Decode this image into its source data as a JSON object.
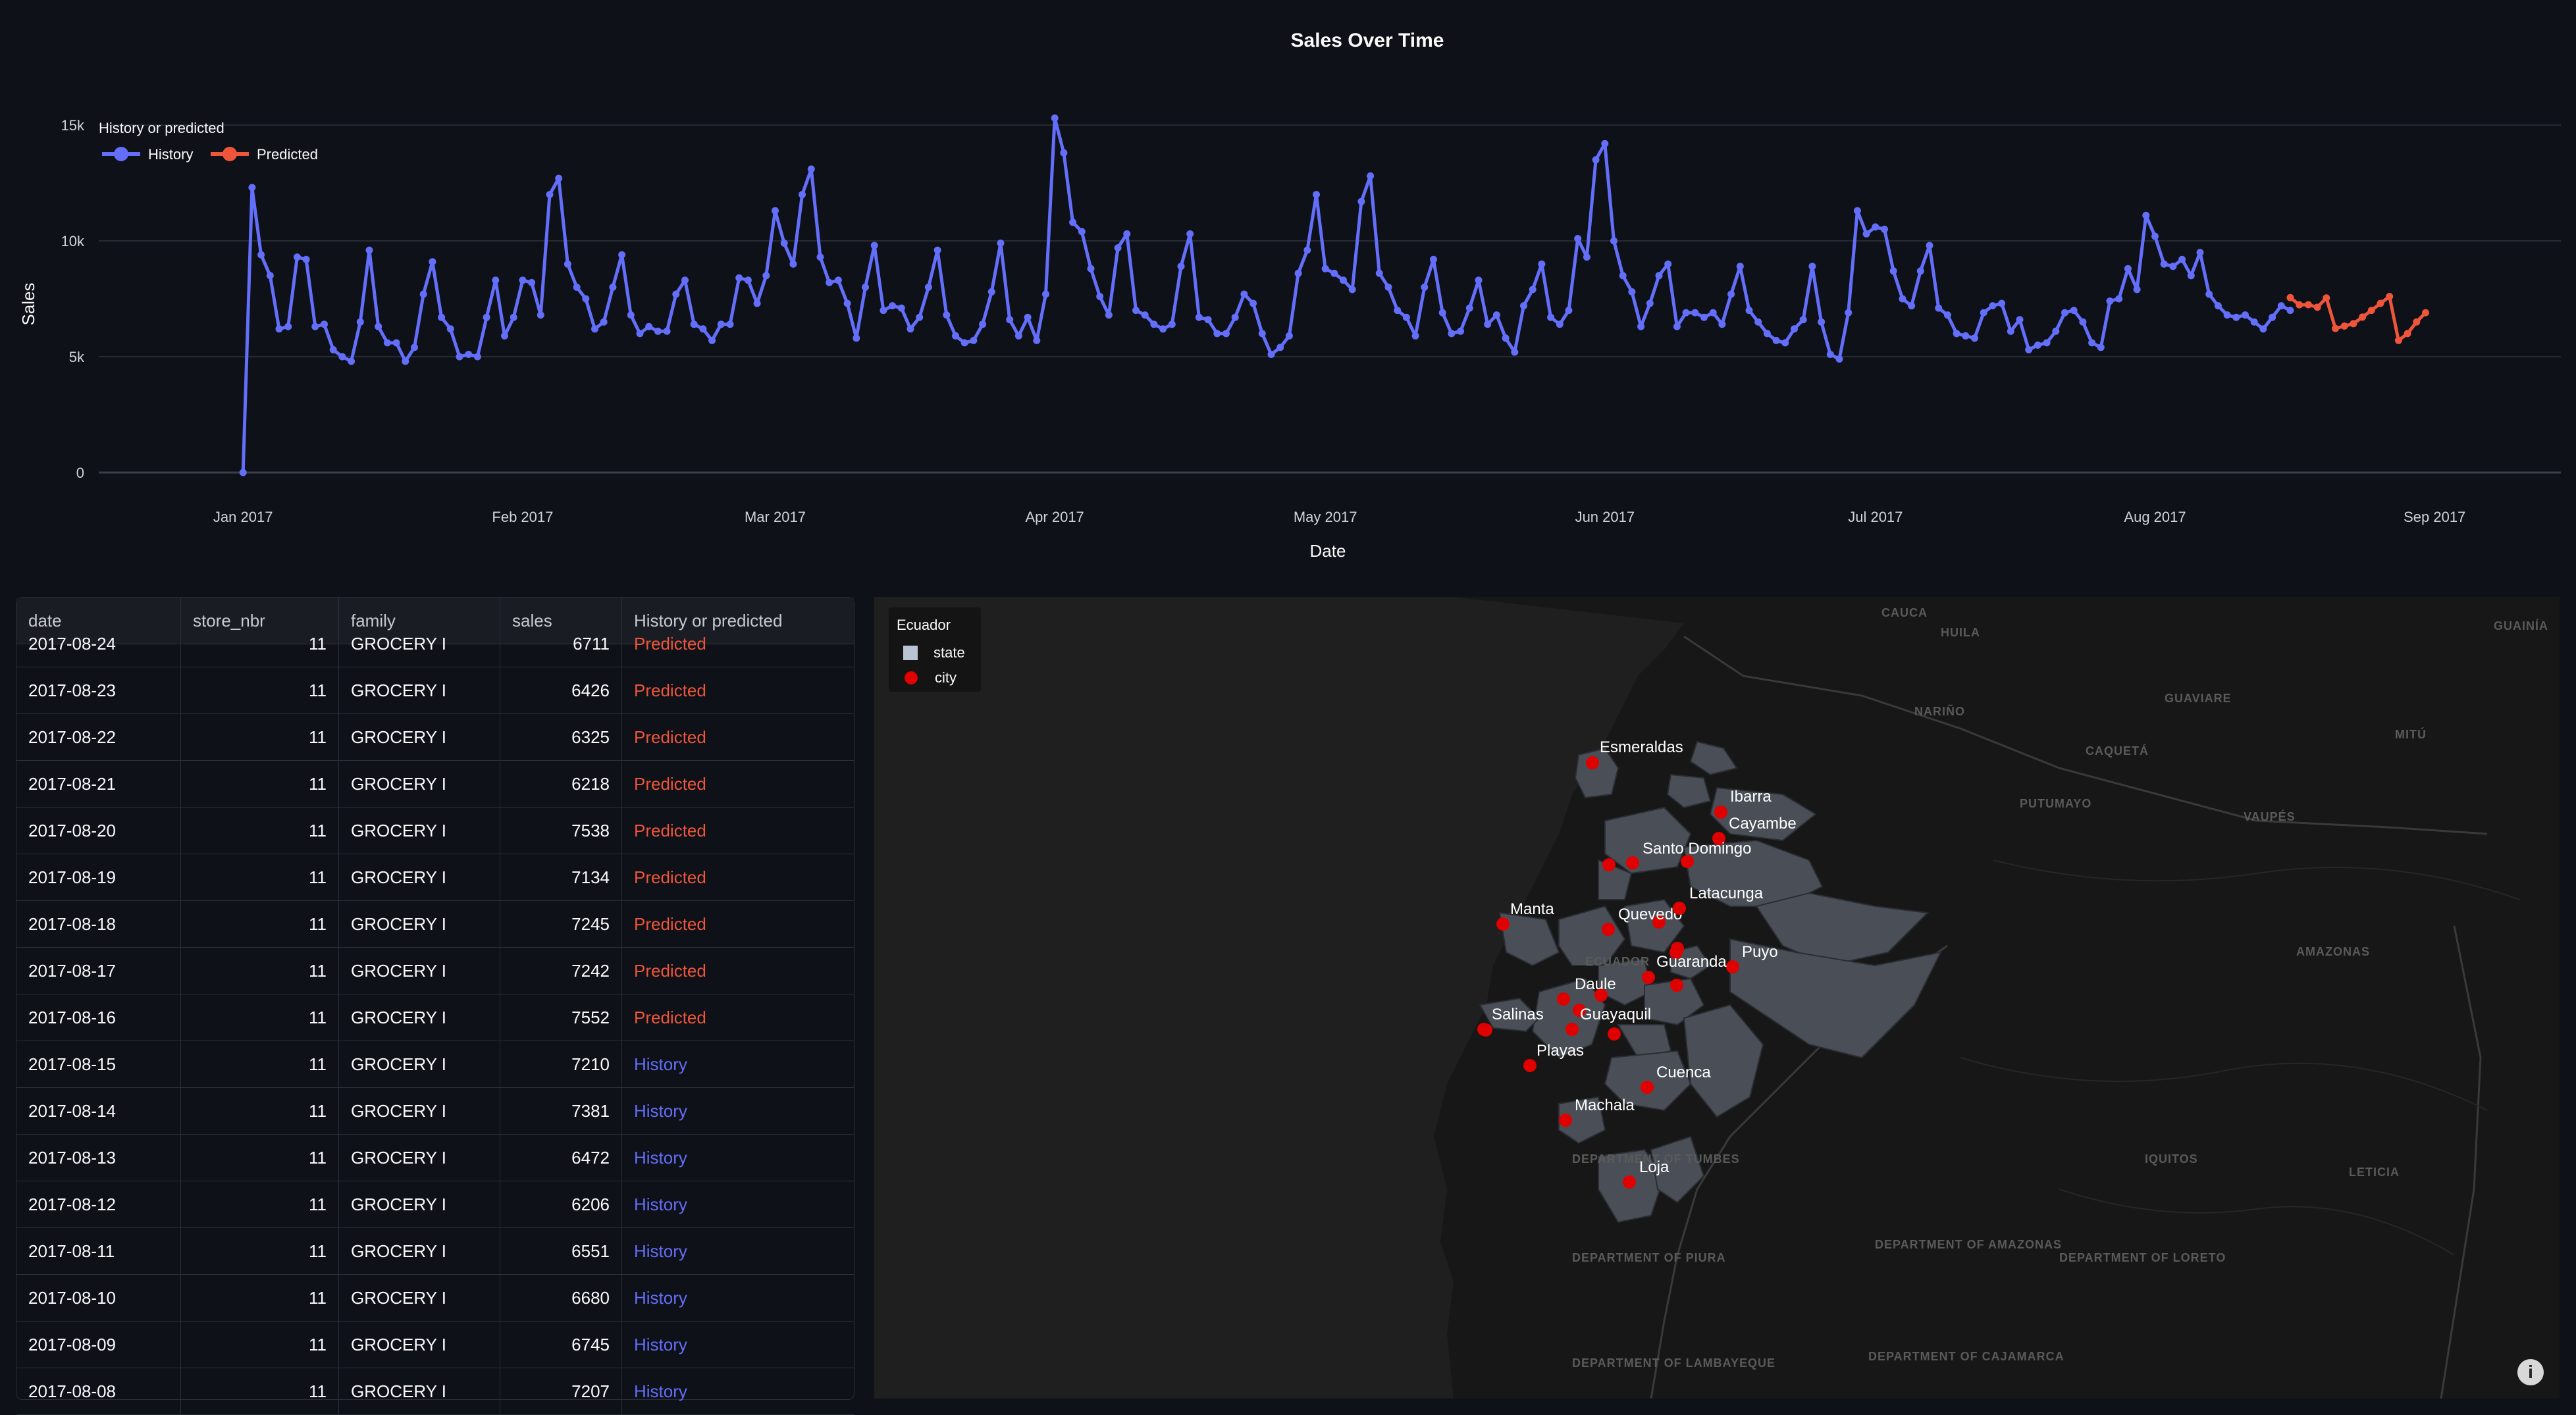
{
  "chart_data": {
    "type": "line",
    "title": "Sales Over Time",
    "xlabel": "Date",
    "ylabel": "Sales",
    "x_ticks": [
      "Jan 2017",
      "Feb 2017",
      "Mar 2017",
      "Apr 2017",
      "May 2017",
      "Jun 2017",
      "Jul 2017",
      "Aug 2017",
      "Sep 2017"
    ],
    "y_ticks": [
      "0",
      "5k",
      "10k",
      "15k"
    ],
    "xlim": [
      "2016-12-16",
      "2017-09-15"
    ],
    "ylim": [
      0,
      15000
    ],
    "grid": true,
    "legend": {
      "title": "History or predicted",
      "position": "top-left"
    },
    "series": [
      {
        "name": "History",
        "color": "#636efa",
        "start_date": "2017-01-01",
        "values": [
          0,
          12300,
          9400,
          8500,
          6200,
          6300,
          9300,
          9200,
          6300,
          6400,
          5300,
          5000,
          4800,
          6500,
          9600,
          6300,
          5600,
          5600,
          4800,
          5400,
          7700,
          9100,
          6700,
          6200,
          5000,
          5100,
          5000,
          6700,
          8300,
          5900,
          6700,
          8300,
          8200,
          6800,
          12000,
          12700,
          9000,
          8000,
          7500,
          6200,
          6500,
          8000,
          9400,
          6800,
          6000,
          6300,
          6100,
          6100,
          7700,
          8300,
          6400,
          6200,
          5700,
          6400,
          6400,
          8400,
          8300,
          7300,
          8500,
          11300,
          9900,
          9000,
          12000,
          13100,
          9300,
          8200,
          8300,
          7300,
          5800,
          8000,
          9800,
          7000,
          7200,
          7100,
          6200,
          6700,
          8000,
          9600,
          6800,
          5900,
          5600,
          5700,
          6400,
          7800,
          9900,
          6600,
          5900,
          6700,
          5700,
          7700,
          15300,
          13800,
          10800,
          10400,
          8800,
          7600,
          6800,
          9700,
          10300,
          7000,
          6800,
          6400,
          6200,
          6400,
          8900,
          10300,
          6700,
          6600,
          6000,
          6000,
          6700,
          7700,
          7300,
          6000,
          5100,
          5400,
          5900,
          8600,
          9600,
          12000,
          8800,
          8600,
          8300,
          7900,
          11700,
          12800,
          8600,
          8000,
          7000,
          6700,
          5900,
          8000,
          9200,
          6900,
          6000,
          6100,
          7100,
          8300,
          6400,
          6800,
          5800,
          5200,
          7200,
          7900,
          9000,
          6700,
          6400,
          7000,
          10100,
          9300,
          13500,
          14200,
          10000,
          8500,
          7800,
          6300,
          7300,
          8500,
          9000,
          6300,
          6900,
          6900,
          6700,
          6900,
          6400,
          7700,
          8900,
          7000,
          6500,
          6000,
          5700,
          5600,
          6200,
          6600,
          8900,
          6500,
          5100,
          4900,
          6900,
          11300,
          10300,
          10600,
          10500,
          8700,
          7500,
          7200,
          8700,
          9800,
          7100,
          6800,
          6000,
          5900,
          5800,
          6900,
          7200,
          7300,
          6100,
          6600,
          5300,
          5500,
          5600,
          6100,
          6900,
          7000,
          6500,
          5600,
          5400,
          7400,
          7500,
          8800,
          7900,
          11100,
          10200,
          9000,
          8900,
          9200,
          8500,
          9500,
          7700,
          7200,
          6800,
          6700,
          6800,
          6500,
          6200,
          6700,
          7200,
          7000
        ]
      },
      {
        "name": "Predicted",
        "color": "#ef553b",
        "start_date": "2017-08-16",
        "values": [
          7552,
          7242,
          7245,
          7134,
          7538,
          6218,
          6325,
          6426,
          6711,
          7000,
          7300,
          7600,
          5700,
          6000,
          6500,
          6900
        ]
      }
    ]
  },
  "table": {
    "columns": [
      "date",
      "store_nbr",
      "family",
      "sales",
      "History or predicted"
    ],
    "rows": [
      [
        "2017-08-24",
        "11",
        "GROCERY I",
        "6711",
        "Predicted"
      ],
      [
        "2017-08-23",
        "11",
        "GROCERY I",
        "6426",
        "Predicted"
      ],
      [
        "2017-08-22",
        "11",
        "GROCERY I",
        "6325",
        "Predicted"
      ],
      [
        "2017-08-21",
        "11",
        "GROCERY I",
        "6218",
        "Predicted"
      ],
      [
        "2017-08-20",
        "11",
        "GROCERY I",
        "7538",
        "Predicted"
      ],
      [
        "2017-08-19",
        "11",
        "GROCERY I",
        "7134",
        "Predicted"
      ],
      [
        "2017-08-18",
        "11",
        "GROCERY I",
        "7245",
        "Predicted"
      ],
      [
        "2017-08-17",
        "11",
        "GROCERY I",
        "7242",
        "Predicted"
      ],
      [
        "2017-08-16",
        "11",
        "GROCERY I",
        "7552",
        "Predicted"
      ],
      [
        "2017-08-15",
        "11",
        "GROCERY I",
        "7210",
        "History"
      ],
      [
        "2017-08-14",
        "11",
        "GROCERY I",
        "7381",
        "History"
      ],
      [
        "2017-08-13",
        "11",
        "GROCERY I",
        "6472",
        "History"
      ],
      [
        "2017-08-12",
        "11",
        "GROCERY I",
        "6206",
        "History"
      ],
      [
        "2017-08-11",
        "11",
        "GROCERY I",
        "6551",
        "History"
      ],
      [
        "2017-08-10",
        "11",
        "GROCERY I",
        "6680",
        "History"
      ],
      [
        "2017-08-09",
        "11",
        "GROCERY I",
        "6745",
        "History"
      ],
      [
        "2017-08-08",
        "11",
        "GROCERY I",
        "7207",
        "History"
      ]
    ]
  },
  "map": {
    "legend_title": "Ecuador",
    "legend_items": [
      {
        "label": "state",
        "color": "#b8c4d4"
      },
      {
        "label": "city",
        "color": "#e00000"
      }
    ],
    "region_labels": [
      "CAUCA",
      "HUILA",
      "NARIÑO",
      "CAQUETÁ",
      "GUAVIARE",
      "GUAINÍA",
      "PUTUMAYO",
      "VAUPÉS",
      "MITÚ",
      "AMAZONAS",
      "IQUITOS",
      "LETICIA",
      "ECUADOR",
      "DEPARTMENT OF TUMBES",
      "DEPARTMENT OF PIURA",
      "DEPARTMENT OF AMAZONAS",
      "DEPARTMENT OF LORETO",
      "DEPARTMENT OF LAMBAYEQUE",
      "DEPARTMENT OF CAJAMARCA"
    ],
    "cities": [
      "Esmeraldas",
      "Ibarra",
      "Cayambe",
      "Santo Domingo",
      "Manta",
      "Quevedo",
      "Latacunga",
      "Puyo",
      "Guaranda",
      "Daule",
      "Salinas",
      "Guayaquil",
      "Playas",
      "Cuenca",
      "Machala",
      "Loja"
    ],
    "info_icon": "info-icon"
  }
}
